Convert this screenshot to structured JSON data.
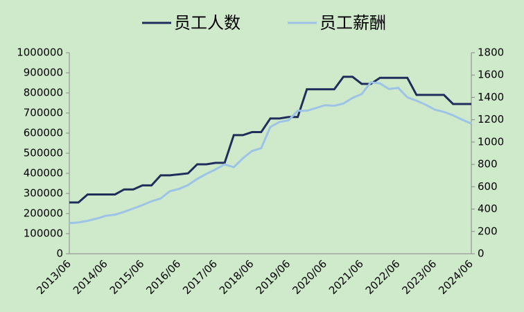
{
  "chart_data": {
    "type": "line",
    "x": [
      "2013/06",
      null,
      null,
      null,
      "2014/06",
      null,
      null,
      null,
      "2015/06",
      null,
      null,
      null,
      "2016/06",
      null,
      null,
      null,
      "2017/06",
      null,
      null,
      null,
      "2018/06",
      null,
      null,
      null,
      "2019/06",
      null,
      null,
      null,
      "2020/06",
      null,
      null,
      null,
      "2021/06",
      null,
      null,
      null,
      "2022/06",
      null,
      null,
      null,
      "2023/06",
      null,
      null,
      null,
      "2024/06"
    ],
    "series": [
      {
        "name": "员工人数",
        "color": "#1f2d5a",
        "values": [
          255000,
          255000,
          295000,
          295000,
          295000,
          295000,
          320000,
          320000,
          340000,
          340000,
          390000,
          390000,
          395000,
          400000,
          445000,
          445000,
          452000,
          452000,
          590000,
          590000,
          605000,
          605000,
          673000,
          673000,
          680000,
          680000,
          818000,
          818000,
          818000,
          818000,
          880000,
          880000,
          845000,
          845000,
          875000,
          875000,
          875000,
          875000,
          790000,
          790000,
          790000,
          790000,
          745000,
          745000,
          745000
        ]
      },
      {
        "name": "员工薪酬",
        "color": "#9dc3e6",
        "axis": "y2",
        "values": [
          275,
          280,
          295,
          315,
          340,
          350,
          375,
          405,
          435,
          470,
          495,
          560,
          580,
          615,
          670,
          715,
          755,
          800,
          775,
          855,
          920,
          945,
          1135,
          1180,
          1195,
          1280,
          1280,
          1305,
          1330,
          1325,
          1345,
          1395,
          1430,
          1535,
          1525,
          1475,
          1485,
          1400,
          1370,
          1335,
          1290,
          1270,
          1240,
          1200,
          1165
        ]
      }
    ],
    "ylim": [
      0,
      1000000
    ],
    "yticks": [
      0,
      100000,
      200000,
      300000,
      400000,
      500000,
      600000,
      700000,
      800000,
      900000,
      1000000
    ],
    "y2lim": [
      0,
      1800
    ],
    "y2ticks": [
      0,
      200,
      400,
      600,
      800,
      1000,
      1200,
      1400,
      1600,
      1800
    ],
    "legend": "top"
  }
}
